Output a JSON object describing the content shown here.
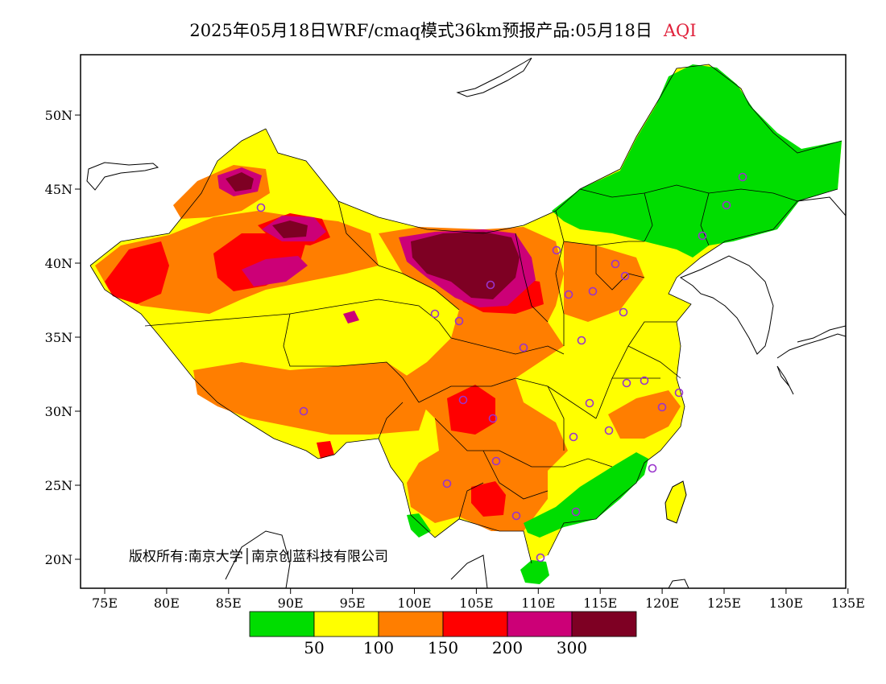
{
  "title": {
    "main": "2025年05月18日WRF/cmaq模式36km预报产品:05月18日",
    "variable": "AQI"
  },
  "axes": {
    "lon_labels": [
      "75E",
      "80E",
      "85E",
      "90E",
      "95E",
      "100E",
      "105E",
      "110E",
      "115E",
      "120E",
      "125E",
      "130E",
      "135E"
    ],
    "lat_labels": [
      "50N",
      "45N",
      "40N",
      "35N",
      "30N",
      "25N",
      "20N"
    ]
  },
  "copyright": "版权所有:南京大学│南京创蓝科技有限公司",
  "legend": {
    "colors": [
      "#00dd00",
      "#ffff00",
      "#ff7e00",
      "#ff0000",
      "#cc0077",
      "#7e0023"
    ],
    "labels": [
      "50",
      "100",
      "150",
      "200",
      "300"
    ]
  },
  "colors": {
    "good": "#00dd00",
    "moderate": "#ffff00",
    "sensitive": "#ff7e00",
    "unhealthy": "#ff0000",
    "very_unhealthy": "#cc0077",
    "hazardous": "#7e0023",
    "station_marker": "#9933cc"
  }
}
